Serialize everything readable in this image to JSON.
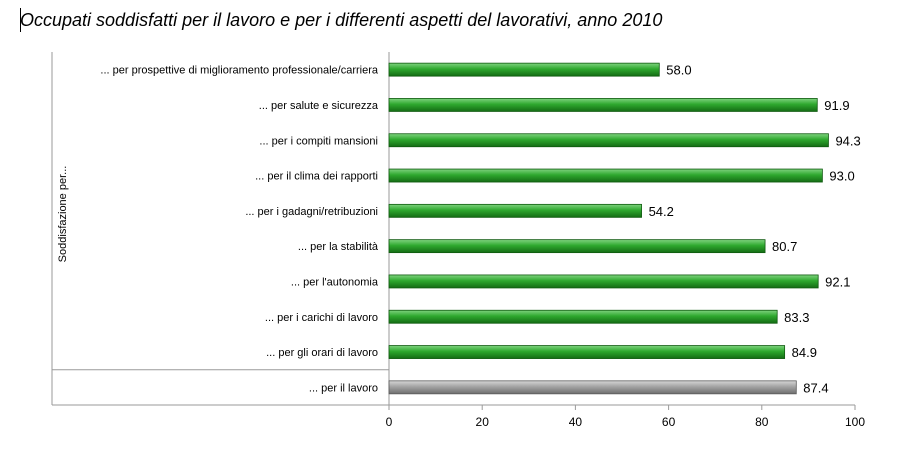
{
  "title": "Occupati soddisfatti per il lavoro e per i differenti aspetti del lavorativi, anno 2010",
  "chart_data": {
    "type": "bar",
    "orientation": "horizontal",
    "ylabel": "Soddisfazione per...",
    "categories": [
      "... per prospettive di miglioramento professionale/carriera",
      "... per salute e sicurezza",
      "... per i compiti mansioni",
      "... per il clima dei rapporti",
      "... per i gadagni/retribuzioni",
      "... per la stabilità",
      "... per l'autonomia",
      "... per i carichi di lavoro",
      "... per gli orari di lavoro",
      "... per il lavoro"
    ],
    "values": [
      58.0,
      91.9,
      94.3,
      93.0,
      54.2,
      80.7,
      92.1,
      83.3,
      84.9,
      87.4
    ],
    "value_labels": [
      "58.0",
      "91.9",
      "94.3",
      "93.0",
      "54.2",
      "80.7",
      "92.1",
      "83.3",
      "84.9",
      "87.4"
    ],
    "bar_colors": [
      "#2e9e2e",
      "#2e9e2e",
      "#2e9e2e",
      "#2e9e2e",
      "#2e9e2e",
      "#2e9e2e",
      "#2e9e2e",
      "#2e9e2e",
      "#2e9e2e",
      "#9a9a9a"
    ],
    "xlim": [
      0,
      100
    ],
    "xticks": [
      0,
      20,
      40,
      60,
      80,
      100
    ],
    "grid": false,
    "legend": "none"
  }
}
